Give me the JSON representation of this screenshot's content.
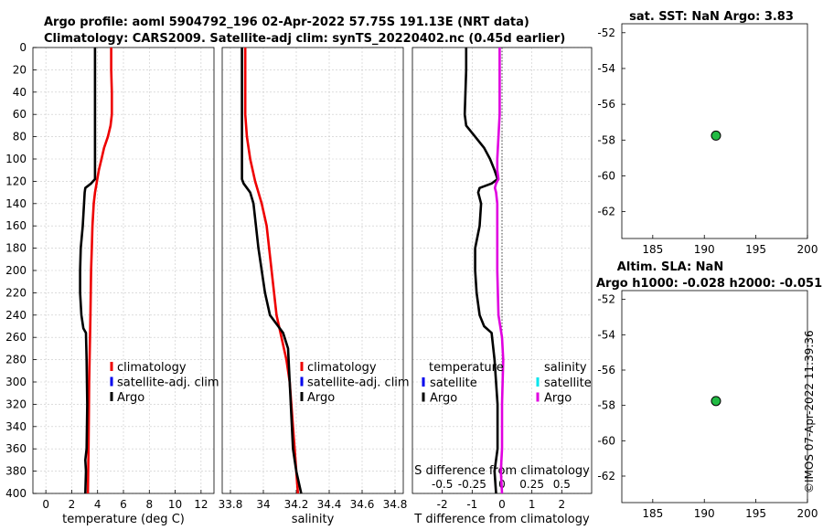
{
  "header": {
    "line1": "Argo profile: aoml 5904792_196 02-Apr-2022 57.75S 191.13E (NRT data)",
    "line2": "Climatology: CARS2009. Satellite-adj clim: synTS_20220402.nc (0.45d earlier)"
  },
  "watermark": "©IMOS 07-Apr-2022 11:39:36",
  "colors": {
    "climatology": "#ee0000",
    "satellite_adj": "#0000ee",
    "argo": "#000000",
    "sal_diff": "#e000e0",
    "sal_satellite": "#00e5ee",
    "marker_fill": "#22bb44"
  },
  "chart_data": [
    {
      "type": "line",
      "title": "",
      "xlabel": "temperature (deg C)",
      "ylabel": "",
      "xlim": [
        -1,
        13
      ],
      "ylim": [
        400,
        0
      ],
      "xticks": [
        0,
        2,
        4,
        6,
        8,
        10,
        12
      ],
      "yticks": [
        0,
        20,
        40,
        60,
        80,
        100,
        120,
        140,
        160,
        180,
        200,
        220,
        240,
        260,
        280,
        300,
        320,
        340,
        360,
        380,
        400
      ],
      "grid": true,
      "legend": [
        "climatology",
        "satellite-adj. clim",
        "Argo"
      ],
      "series": [
        {
          "name": "climatology",
          "color": "#ee0000",
          "depth": [
            0,
            20,
            40,
            60,
            70,
            80,
            90,
            100,
            110,
            120,
            130,
            140,
            160,
            180,
            200,
            240,
            300,
            360,
            400
          ],
          "values": [
            5.05,
            5.05,
            5.1,
            5.1,
            5.0,
            4.8,
            4.5,
            4.3,
            4.1,
            3.95,
            3.8,
            3.7,
            3.6,
            3.55,
            3.5,
            3.45,
            3.35,
            3.3,
            3.25
          ]
        },
        {
          "name": "Argo",
          "color": "#000000",
          "depth": [
            0,
            20,
            60,
            100,
            118,
            122,
            126,
            130,
            140,
            160,
            180,
            200,
            220,
            240,
            252,
            256,
            280,
            320,
            360,
            370,
            380,
            400
          ],
          "values": [
            3.8,
            3.8,
            3.8,
            3.8,
            3.8,
            3.5,
            3.05,
            3.0,
            2.95,
            2.85,
            2.7,
            2.65,
            2.65,
            2.75,
            2.9,
            3.1,
            3.15,
            3.2,
            3.15,
            3.05,
            3.1,
            3.05
          ]
        }
      ]
    },
    {
      "type": "line",
      "title": "",
      "xlabel": "salinity",
      "ylabel": "",
      "xlim": [
        33.75,
        34.85
      ],
      "ylim": [
        400,
        0
      ],
      "xticks": [
        33.8,
        34,
        34.2,
        34.4,
        34.6,
        34.8
      ],
      "xtick_labels": [
        "33.8",
        "34",
        "34.2",
        "34.4",
        "34.6",
        "34.8"
      ],
      "grid": true,
      "legend": [
        "climatology",
        "satellite-adj. clim",
        "Argo"
      ],
      "series": [
        {
          "name": "climatology",
          "color": "#ee0000",
          "depth": [
            0,
            60,
            80,
            100,
            120,
            140,
            160,
            200,
            240,
            260,
            280,
            300,
            340,
            380,
            400
          ],
          "values": [
            33.89,
            33.89,
            33.9,
            33.92,
            33.95,
            33.99,
            34.02,
            34.05,
            34.08,
            34.11,
            34.14,
            34.16,
            34.18,
            34.2,
            34.21
          ]
        },
        {
          "name": "Argo",
          "color": "#000000",
          "depth": [
            0,
            118,
            122,
            126,
            130,
            140,
            180,
            220,
            240,
            250,
            256,
            270,
            300,
            330,
            360,
            380,
            400
          ],
          "values": [
            33.87,
            33.87,
            33.88,
            33.9,
            33.92,
            33.94,
            33.97,
            34.01,
            34.04,
            34.09,
            34.12,
            34.15,
            34.16,
            34.17,
            34.18,
            34.2,
            34.23
          ]
        }
      ]
    },
    {
      "type": "line",
      "title": "",
      "xlabel": "T difference from climatology",
      "xlabel_top": "S difference from climatology",
      "ylabel": "",
      "xlim": [
        -3,
        3
      ],
      "ylim": [
        400,
        0
      ],
      "xticks": [
        -2,
        -1,
        0,
        1,
        2
      ],
      "top_ticks": [
        -0.5,
        -0.25,
        0,
        0.25,
        0.5
      ],
      "top_tick_labels": [
        "-0.5",
        "-0.25",
        "0",
        "0.25",
        "0.5"
      ],
      "grid": true,
      "legend_left": {
        "title": "temperature",
        "items": [
          "satellite",
          "Argo"
        ]
      },
      "legend_right": {
        "title": "salinity",
        "items": [
          "satellite",
          "Argo"
        ]
      },
      "series": [
        {
          "name": "T Argo",
          "color": "#000000",
          "depth": [
            0,
            20,
            60,
            70,
            80,
            90,
            100,
            110,
            118,
            122,
            126,
            130,
            140,
            160,
            180,
            200,
            220,
            240,
            250,
            256,
            280,
            320,
            360,
            380,
            400
          ],
          "values": [
            -1.2,
            -1.2,
            -1.25,
            -1.2,
            -0.9,
            -0.6,
            -0.4,
            -0.25,
            -0.15,
            -0.35,
            -0.75,
            -0.8,
            -0.7,
            -0.75,
            -0.9,
            -0.9,
            -0.85,
            -0.75,
            -0.6,
            -0.35,
            -0.25,
            -0.15,
            -0.15,
            -0.25,
            -0.2
          ]
        },
        {
          "name": "S Argo",
          "color": "#e000e0",
          "depth": [
            0,
            60,
            80,
            100,
            110,
            118,
            122,
            126,
            130,
            140,
            160,
            200,
            240,
            260,
            280,
            320,
            360,
            380,
            400
          ],
          "values": [
            -0.02,
            -0.02,
            -0.03,
            -0.04,
            -0.04,
            -0.03,
            -0.05,
            -0.06,
            -0.05,
            -0.04,
            -0.04,
            -0.04,
            -0.03,
            0.0,
            0.01,
            0.0,
            0.0,
            -0.01,
            0.0
          ]
        }
      ]
    },
    {
      "type": "scatter",
      "title": "sat. SST: NaN Argo: 3.83",
      "xlim": [
        182,
        200
      ],
      "ylim": [
        -63.5,
        -51.5
      ],
      "xticks": [
        185,
        190,
        195,
        200
      ],
      "yticks": [
        -52,
        -54,
        -56,
        -58,
        -60,
        -62
      ],
      "points": [
        {
          "lon": 191.13,
          "lat": -57.75
        }
      ]
    },
    {
      "type": "scatter",
      "title": "Altim. SLA: NaN",
      "title_line2": "Argo h1000: -0.028 h2000: -0.051",
      "xlim": [
        182,
        200
      ],
      "ylim": [
        -63.5,
        -51.5
      ],
      "xticks": [
        185,
        190,
        195,
        200
      ],
      "yticks": [
        -52,
        -54,
        -56,
        -58,
        -60,
        -62
      ],
      "points": [
        {
          "lon": 191.13,
          "lat": -57.75
        }
      ]
    }
  ]
}
